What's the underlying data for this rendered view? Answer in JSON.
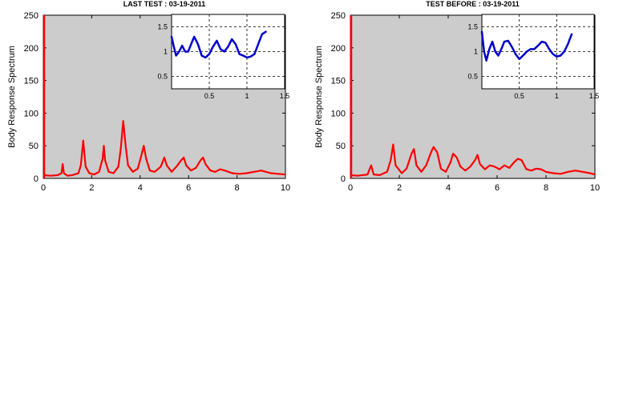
{
  "chart_data": [
    {
      "type": "line",
      "title": "LAST TEST : 03-19-2011",
      "ylabel": "Body Response Spectrum",
      "xlabel": "",
      "xlim": [
        0,
        10
      ],
      "ylim": [
        0,
        250
      ],
      "xticks": [
        "0",
        "2",
        "4",
        "6",
        "8",
        "10"
      ],
      "yticks": [
        "0",
        "50",
        "100",
        "150",
        "200",
        "250"
      ],
      "background": "#cccccc",
      "series": [
        {
          "color": "#ff0000",
          "x": [
            0,
            0.3,
            0.6,
            0.75,
            0.8,
            0.85,
            1.0,
            1.2,
            1.45,
            1.55,
            1.65,
            1.75,
            1.9,
            2.1,
            2.3,
            2.45,
            2.5,
            2.55,
            2.7,
            2.9,
            3.1,
            3.2,
            3.3,
            3.4,
            3.5,
            3.7,
            3.9,
            4.05,
            4.15,
            4.25,
            4.4,
            4.6,
            4.85,
            5.0,
            5.1,
            5.3,
            5.5,
            5.7,
            5.8,
            5.9,
            6.1,
            6.3,
            6.5,
            6.6,
            6.7,
            6.9,
            7.1,
            7.3,
            7.5,
            7.8,
            8.1,
            8.4,
            8.7,
            9.0,
            9.2,
            9.4,
            9.7,
            10.0
          ],
          "y": [
            5,
            4,
            5,
            8,
            22,
            8,
            4,
            5,
            8,
            20,
            58,
            18,
            8,
            6,
            10,
            30,
            50,
            28,
            10,
            8,
            18,
            45,
            88,
            50,
            20,
            10,
            15,
            35,
            50,
            30,
            12,
            10,
            18,
            32,
            20,
            10,
            18,
            28,
            32,
            20,
            12,
            16,
            28,
            32,
            22,
            12,
            10,
            14,
            12,
            8,
            7,
            8,
            10,
            12,
            10,
            8,
            7,
            6
          ]
        }
      ],
      "inset": {
        "xlim": [
          0,
          1.5
        ],
        "ylim": [
          0.25,
          1.75
        ],
        "xticks": [
          "0.5",
          "1",
          "1.5"
        ],
        "yticks": [
          "0.5",
          "1",
          "1.5"
        ],
        "grid": true,
        "series": [
          {
            "color": "#0000cc",
            "x": [
              0,
              0.03,
              0.06,
              0.1,
              0.14,
              0.18,
              0.22,
              0.26,
              0.3,
              0.35,
              0.4,
              0.45,
              0.5,
              0.55,
              0.6,
              0.65,
              0.7,
              0.75,
              0.8,
              0.85,
              0.9,
              0.95,
              1.0,
              1.05,
              1.1,
              1.15,
              1.2,
              1.25
            ],
            "y": [
              1.3,
              1.1,
              0.92,
              1.0,
              1.12,
              1.0,
              1.0,
              1.15,
              1.3,
              1.15,
              0.92,
              0.88,
              0.95,
              1.1,
              1.22,
              1.05,
              1.0,
              1.1,
              1.25,
              1.15,
              0.95,
              0.92,
              0.88,
              0.9,
              0.95,
              1.15,
              1.35,
              1.4
            ]
          }
        ]
      }
    },
    {
      "type": "line",
      "title": "TEST BEFORE : 03-19-2011",
      "ylabel": "Body Response Spectrum",
      "xlabel": "",
      "xlim": [
        0,
        10
      ],
      "ylim": [
        0,
        250
      ],
      "xticks": [
        "0",
        "2",
        "4",
        "6",
        "8",
        "10"
      ],
      "yticks": [
        "0",
        "50",
        "100",
        "150",
        "200",
        "250"
      ],
      "background": "#cccccc",
      "series": [
        {
          "color": "#ff0000",
          "x": [
            0,
            0.3,
            0.7,
            0.85,
            0.95,
            1.2,
            1.5,
            1.65,
            1.75,
            1.85,
            2.1,
            2.3,
            2.5,
            2.6,
            2.7,
            2.9,
            3.1,
            3.3,
            3.4,
            3.55,
            3.7,
            3.9,
            4.1,
            4.2,
            4.35,
            4.5,
            4.7,
            4.9,
            5.1,
            5.2,
            5.3,
            5.5,
            5.7,
            5.9,
            6.1,
            6.3,
            6.5,
            6.7,
            6.85,
            7.0,
            7.2,
            7.4,
            7.6,
            7.8,
            8.0,
            8.3,
            8.6,
            8.9,
            9.2,
            9.5,
            9.8,
            10.0
          ],
          "y": [
            5,
            4,
            6,
            20,
            6,
            5,
            10,
            28,
            52,
            20,
            8,
            15,
            38,
            45,
            20,
            10,
            20,
            40,
            48,
            40,
            15,
            10,
            25,
            38,
            32,
            18,
            12,
            18,
            28,
            36,
            22,
            14,
            20,
            18,
            14,
            20,
            16,
            25,
            30,
            28,
            14,
            12,
            15,
            14,
            10,
            8,
            7,
            10,
            12,
            10,
            8,
            6
          ]
        }
      ],
      "inset": {
        "xlim": [
          0,
          1.5
        ],
        "ylim": [
          0.25,
          1.75
        ],
        "xticks": [
          "0.5",
          "1",
          "1.5"
        ],
        "yticks": [
          "0.5",
          "1",
          "1.5"
        ],
        "grid": true,
        "series": [
          {
            "color": "#0000cc",
            "x": [
              0,
              0.03,
              0.06,
              0.1,
              0.14,
              0.18,
              0.22,
              0.26,
              0.3,
              0.35,
              0.4,
              0.45,
              0.5,
              0.55,
              0.6,
              0.65,
              0.7,
              0.75,
              0.8,
              0.85,
              0.9,
              0.95,
              1.0,
              1.05,
              1.1,
              1.15,
              1.2
            ],
            "y": [
              1.4,
              1.0,
              0.82,
              1.05,
              1.2,
              1.0,
              0.92,
              1.05,
              1.2,
              1.22,
              1.1,
              0.95,
              0.85,
              0.92,
              1.0,
              1.05,
              1.05,
              1.12,
              1.2,
              1.18,
              1.05,
              0.95,
              0.9,
              0.92,
              1.0,
              1.15,
              1.35
            ]
          }
        ]
      }
    }
  ]
}
